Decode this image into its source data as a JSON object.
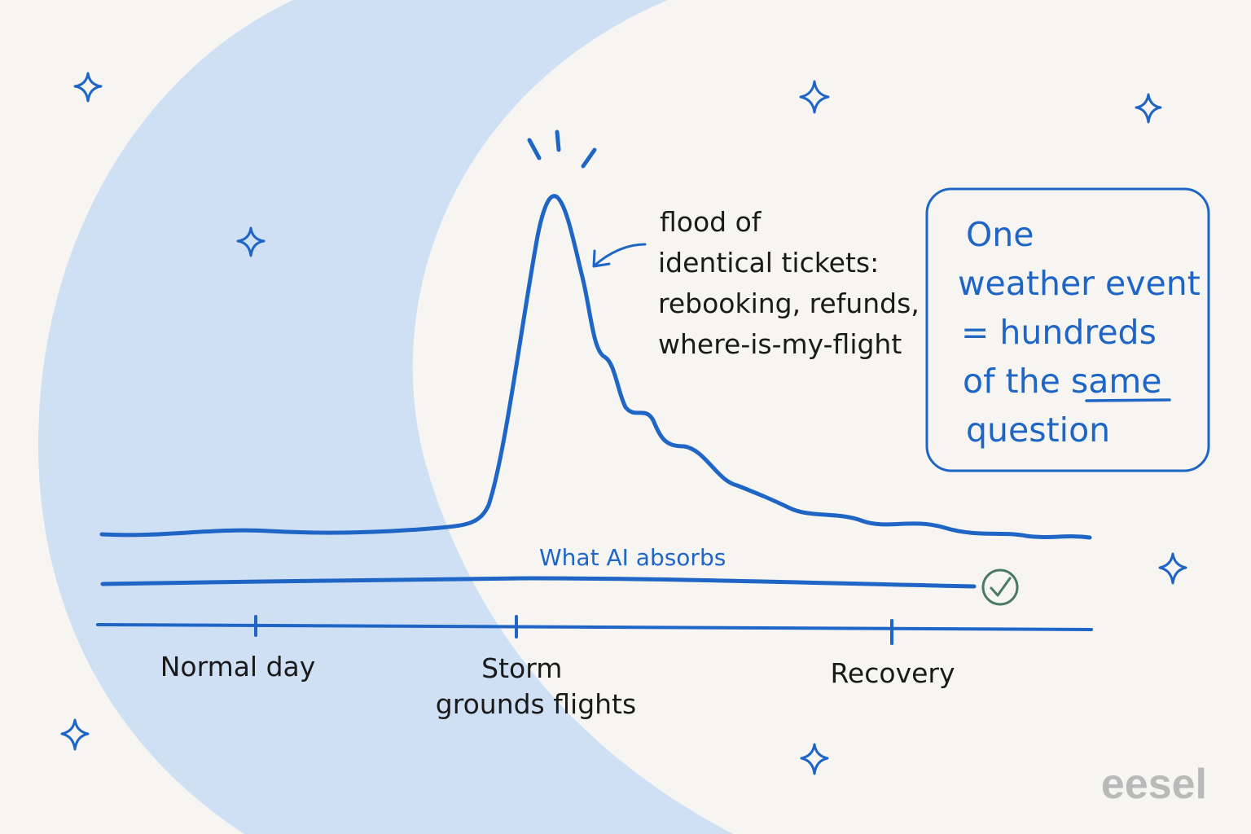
{
  "colors": {
    "background": "#f6f5f2",
    "moon": "#cfe0f5",
    "ink_blue": "#1f65c6",
    "ink_dark": "#1a1a1a",
    "check_green": "#4b7a63",
    "logo_gray": "#b9b9b9"
  },
  "annotation": {
    "lines": [
      "flood of",
      "identical tickets:",
      "rebooking, refunds,",
      "where-is-my-flight"
    ]
  },
  "callout": {
    "lines": [
      "One",
      "weather event",
      "= hundreds",
      "of the same",
      "question"
    ],
    "emphasis_word": "same"
  },
  "ai_label": "What AI absorbs",
  "timeline": {
    "ticks": [
      {
        "lines": [
          "Normal day"
        ]
      },
      {
        "lines": [
          "Storm",
          "grounds flights"
        ]
      },
      {
        "lines": [
          "Recovery"
        ]
      }
    ]
  },
  "icons": {
    "check": "check-circle-icon",
    "sparkle": "sparkle-icon",
    "emphasis": "burst-lines-icon"
  },
  "logo": "eesel"
}
